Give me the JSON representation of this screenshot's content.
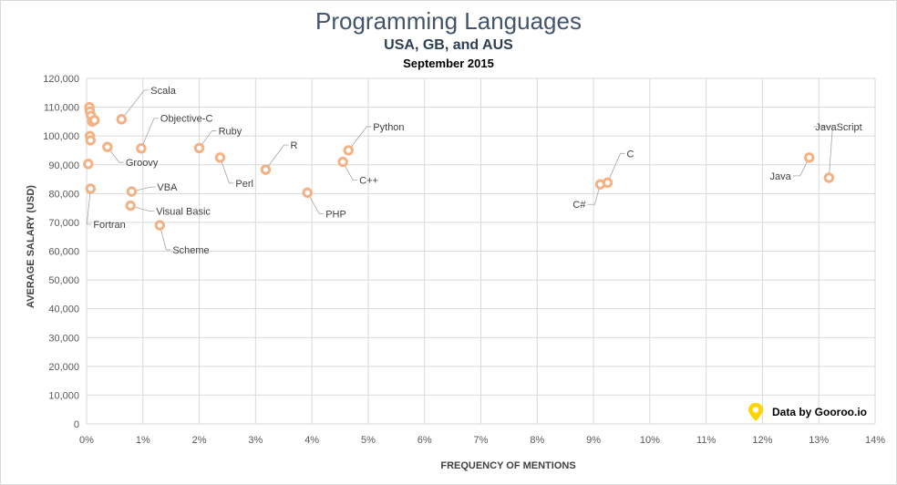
{
  "title": "Programming Languages",
  "subtitle": "USA, GB, and AUS",
  "date": "September 2015",
  "credit": "Data by Gooroo.io",
  "chart_data": {
    "type": "scatter",
    "title": "Programming Languages",
    "subtitle": "USA, GB, and AUS",
    "xlabel": "FREQUENCY OF MENTIONS",
    "ylabel": "AVERAGE SALARY (USD)",
    "xlim": [
      0,
      14
    ],
    "ylim": [
      0,
      120000
    ],
    "xticks": [
      "0%",
      "1%",
      "2%",
      "3%",
      "4%",
      "5%",
      "6%",
      "7%",
      "8%",
      "9%",
      "10%",
      "11%",
      "12%",
      "13%",
      "14%"
    ],
    "yticks": [
      "0",
      "10,000",
      "20,000",
      "30,000",
      "40,000",
      "50,000",
      "60,000",
      "70,000",
      "80,000",
      "90,000",
      "100,000",
      "110,000",
      "120,000"
    ],
    "grid": true,
    "marker_color": "#f4b183",
    "points": [
      {
        "x": 0.05,
        "y": 110000,
        "label": ""
      },
      {
        "x": 0.06,
        "y": 108500,
        "label": ""
      },
      {
        "x": 0.08,
        "y": 107000,
        "label": ""
      },
      {
        "x": 0.1,
        "y": 105000,
        "label": ""
      },
      {
        "x": 0.14,
        "y": 105500,
        "label": ""
      },
      {
        "x": 0.06,
        "y": 100000,
        "label": ""
      },
      {
        "x": 0.07,
        "y": 98500,
        "label": ""
      },
      {
        "x": 0.03,
        "y": 90300,
        "label": ""
      },
      {
        "x": 0.07,
        "y": 81700,
        "label": "Fortran"
      },
      {
        "x": 0.62,
        "y": 105800,
        "label": "Scala"
      },
      {
        "x": 0.97,
        "y": 95700,
        "label": "Objective-C"
      },
      {
        "x": 0.37,
        "y": 96200,
        "label": "Groovy"
      },
      {
        "x": 0.8,
        "y": 80700,
        "label": "VBA"
      },
      {
        "x": 0.78,
        "y": 75800,
        "label": "Visual Basic"
      },
      {
        "x": 1.3,
        "y": 69000,
        "label": "Scheme"
      },
      {
        "x": 2.0,
        "y": 95800,
        "label": "Ruby"
      },
      {
        "x": 2.37,
        "y": 92500,
        "label": "Perl"
      },
      {
        "x": 3.18,
        "y": 88300,
        "label": "R"
      },
      {
        "x": 3.92,
        "y": 80300,
        "label": "PHP"
      },
      {
        "x": 4.65,
        "y": 95000,
        "label": "Python"
      },
      {
        "x": 4.55,
        "y": 91000,
        "label": "C++"
      },
      {
        "x": 9.25,
        "y": 83800,
        "label": "C"
      },
      {
        "x": 9.12,
        "y": 83200,
        "label": "C#"
      },
      {
        "x": 12.83,
        "y": 92500,
        "label": "Java"
      },
      {
        "x": 13.18,
        "y": 85500,
        "label": "JavaScript"
      }
    ]
  }
}
